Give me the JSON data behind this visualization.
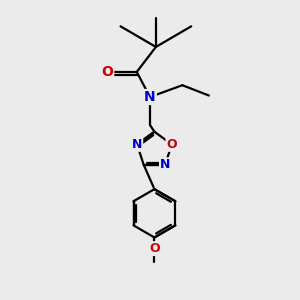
{
  "bg_color": "#ebebeb",
  "atom_color_N": "#0000cc",
  "atom_color_O": "#cc0000",
  "bond_color": "#000000",
  "bond_width": 1.6,
  "figsize": [
    3.0,
    3.0
  ],
  "dpi": 100,
  "xlim": [
    0,
    10
  ],
  "ylim": [
    0,
    10
  ]
}
